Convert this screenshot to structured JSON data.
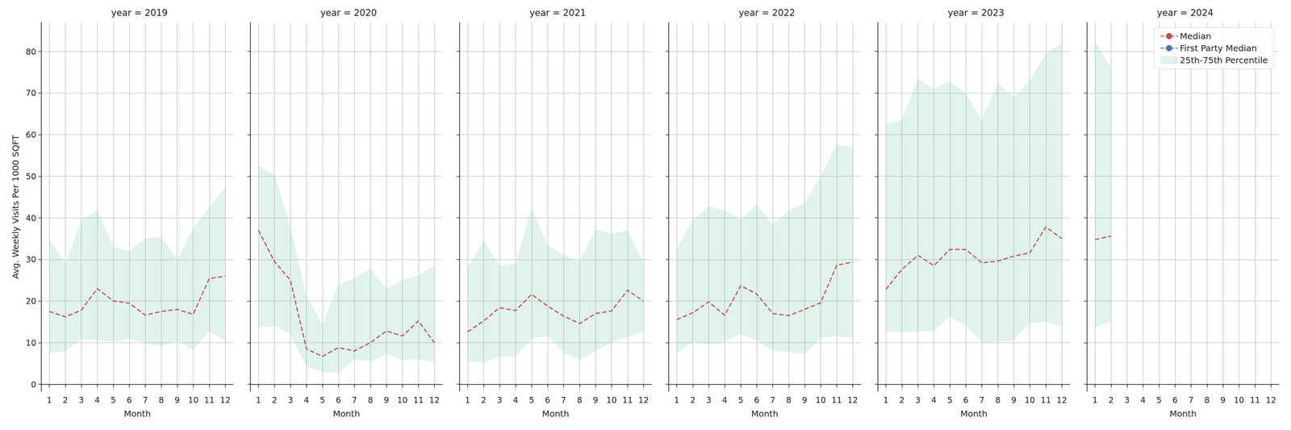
{
  "chart_data": [
    {
      "type": "line",
      "title": "year = 2019",
      "xlabel": "Month",
      "ylabel": "Avg. Weekly Visits Per 1000 SQFT",
      "x": [
        1,
        2,
        3,
        4,
        5,
        6,
        7,
        8,
        9,
        10,
        11,
        12
      ],
      "xlim": [
        0.5,
        12.5
      ],
      "xticks": [
        1,
        2,
        3,
        4,
        5,
        6,
        7,
        8,
        9,
        10,
        11,
        12
      ],
      "ylim": [
        -1.7,
        87
      ],
      "yticks": [
        0,
        10,
        20,
        30,
        40,
        50,
        60,
        70,
        80
      ],
      "grid": true,
      "series": [
        {
          "name": "Median",
          "color": "#c44e52",
          "line_style": "dashed",
          "values": [
            17.5,
            16.2,
            17.8,
            23,
            20,
            19.5,
            16.6,
            17.5,
            18,
            16.8,
            25.4,
            26
          ]
        },
        {
          "name": "First Party Median",
          "color": "#4c72b0",
          "line_style": "dashed",
          "values": [
            null,
            null,
            null,
            null,
            null,
            null,
            null,
            null,
            null,
            null,
            null,
            null
          ]
        },
        {
          "name": "25th-75th Percentile",
          "type": "band",
          "color": "#66c2a5",
          "lower": [
            7.5,
            8,
            10.8,
            10.6,
            10.2,
            11,
            9.8,
            9.2,
            10.4,
            8.3,
            12.8,
            10.4
          ],
          "upper": [
            35,
            29,
            39.5,
            41.8,
            33,
            32,
            35,
            35.5,
            30,
            37.5,
            42.5,
            47.5
          ]
        }
      ]
    },
    {
      "type": "line",
      "title": "year = 2020",
      "xlabel": "Month",
      "tick_labels": "x",
      "x": [
        1,
        2,
        3,
        4,
        5,
        6,
        7,
        8,
        9,
        10,
        11,
        12
      ],
      "xlim": [
        0.5,
        12.5
      ],
      "xticks": [
        1,
        2,
        3,
        4,
        5,
        6,
        7,
        8,
        9,
        10,
        11,
        12
      ],
      "ylim": [
        -1.7,
        87
      ],
      "yticks": [
        0,
        10,
        20,
        30,
        40,
        50,
        60,
        70,
        80
      ],
      "grid": true,
      "series": [
        {
          "name": "Median",
          "color": "#c44e52",
          "line_style": "dashed",
          "values": [
            37,
            29.5,
            25,
            8.5,
            6.7,
            8.8,
            8,
            10,
            12.8,
            11.6,
            15.2,
            10
          ]
        },
        {
          "name": "First Party Median",
          "color": "#4c72b0",
          "line_style": "dashed",
          "values": [
            null,
            null,
            null,
            null,
            null,
            null,
            null,
            null,
            null,
            null,
            null,
            null
          ]
        },
        {
          "name": "25th-75th Percentile",
          "type": "band",
          "color": "#66c2a5",
          "lower": [
            13.6,
            14,
            12,
            4.2,
            3,
            2.6,
            6,
            5.5,
            7.3,
            5.8,
            6,
            5.2
          ],
          "upper": [
            52.5,
            50.5,
            38,
            21,
            14.5,
            24,
            25.5,
            27.8,
            23,
            25,
            26.2,
            28.5
          ]
        }
      ]
    },
    {
      "type": "line",
      "title": "year = 2021",
      "xlabel": "Month",
      "tick_labels": "x",
      "x": [
        1,
        2,
        3,
        4,
        5,
        6,
        7,
        8,
        9,
        10,
        11,
        12
      ],
      "xlim": [
        0.5,
        12.5
      ],
      "xticks": [
        1,
        2,
        3,
        4,
        5,
        6,
        7,
        8,
        9,
        10,
        11,
        12
      ],
      "ylim": [
        -1.7,
        87
      ],
      "yticks": [
        0,
        10,
        20,
        30,
        40,
        50,
        60,
        70,
        80
      ],
      "grid": true,
      "series": [
        {
          "name": "Median",
          "color": "#c44e52",
          "line_style": "dashed",
          "values": [
            12.6,
            15.2,
            18.4,
            17.7,
            21.6,
            18.8,
            16.4,
            14.6,
            17,
            17.6,
            22.6,
            20
          ]
        },
        {
          "name": "First Party Median",
          "color": "#4c72b0",
          "line_style": "dashed",
          "values": [
            null,
            null,
            null,
            null,
            null,
            null,
            null,
            null,
            null,
            null,
            null,
            null
          ]
        },
        {
          "name": "25th-75th Percentile",
          "type": "band",
          "color": "#66c2a5",
          "lower": [
            5.5,
            5.2,
            6.7,
            6.6,
            11,
            11.6,
            7.6,
            5.8,
            8,
            10,
            11.5,
            12.7
          ],
          "upper": [
            28,
            34.5,
            28.5,
            29,
            42.3,
            33.5,
            31,
            29.5,
            37.2,
            36.2,
            37,
            29.5
          ]
        }
      ]
    },
    {
      "type": "line",
      "title": "year = 2022",
      "xlabel": "Month",
      "tick_labels": "x",
      "x": [
        1,
        2,
        3,
        4,
        5,
        6,
        7,
        8,
        9,
        10,
        11,
        12
      ],
      "xlim": [
        0.5,
        12.5
      ],
      "xticks": [
        1,
        2,
        3,
        4,
        5,
        6,
        7,
        8,
        9,
        10,
        11,
        12
      ],
      "ylim": [
        -1.7,
        87
      ],
      "yticks": [
        0,
        10,
        20,
        30,
        40,
        50,
        60,
        70,
        80
      ],
      "grid": true,
      "series": [
        {
          "name": "Median",
          "color": "#c44e52",
          "line_style": "dashed",
          "values": [
            15.5,
            17.2,
            19.8,
            16.6,
            23.7,
            21.7,
            17,
            16.5,
            18,
            19.6,
            28.6,
            29.4
          ]
        },
        {
          "name": "First Party Median",
          "color": "#4c72b0",
          "line_style": "dashed",
          "values": [
            null,
            null,
            null,
            null,
            null,
            null,
            null,
            null,
            null,
            null,
            null,
            null
          ]
        },
        {
          "name": "25th-75th Percentile",
          "type": "band",
          "color": "#66c2a5",
          "lower": [
            7.5,
            10.2,
            9.6,
            10.2,
            12,
            10.5,
            8,
            7.8,
            7.2,
            11.2,
            11.6,
            11.2
          ],
          "upper": [
            32.5,
            39.5,
            42.8,
            41.8,
            39.5,
            43.2,
            38.4,
            41.8,
            43.6,
            50,
            57.6,
            57
          ]
        }
      ]
    },
    {
      "type": "line",
      "title": "year = 2023",
      "xlabel": "Month",
      "tick_labels": "x",
      "x": [
        1,
        2,
        3,
        4,
        5,
        6,
        7,
        8,
        9,
        10,
        11,
        12
      ],
      "xlim": [
        0.5,
        12.5
      ],
      "xticks": [
        1,
        2,
        3,
        4,
        5,
        6,
        7,
        8,
        9,
        10,
        11,
        12
      ],
      "ylim": [
        -1.7,
        87
      ],
      "yticks": [
        0,
        10,
        20,
        30,
        40,
        50,
        60,
        70,
        80
      ],
      "grid": true,
      "series": [
        {
          "name": "Median",
          "color": "#c44e52",
          "line_style": "dashed",
          "values": [
            22.8,
            27.6,
            31,
            28.5,
            32.4,
            32.4,
            29.2,
            29.6,
            30.8,
            31.6,
            37.8,
            35
          ]
        },
        {
          "name": "First Party Median",
          "color": "#4c72b0",
          "line_style": "dashed",
          "values": [
            null,
            null,
            null,
            null,
            null,
            null,
            null,
            null,
            null,
            null,
            null,
            null
          ]
        },
        {
          "name": "25th-75th Percentile",
          "type": "band",
          "color": "#66c2a5",
          "lower": [
            12.6,
            12.6,
            12.7,
            12.7,
            16.3,
            14.2,
            10,
            10.2,
            10.6,
            14.6,
            15,
            14
          ],
          "upper": [
            62.5,
            63.6,
            73.5,
            71,
            72.8,
            69.8,
            63.6,
            72.4,
            69,
            73,
            79.5,
            82
          ]
        }
      ]
    },
    {
      "type": "line",
      "title": "year = 2024",
      "xlabel": "Month",
      "tick_labels": "x",
      "legend": "upper right",
      "x": [
        1,
        2
      ],
      "xlim": [
        0.5,
        12.5
      ],
      "xticks": [
        1,
        2,
        3,
        4,
        5,
        6,
        7,
        8,
        9,
        10,
        11,
        12
      ],
      "ylim": [
        -1.7,
        87
      ],
      "yticks": [
        0,
        10,
        20,
        30,
        40,
        50,
        60,
        70,
        80
      ],
      "grid": true,
      "series": [
        {
          "name": "Median",
          "color": "#c44e52",
          "line_style": "dashed",
          "values": [
            34.8,
            35.6
          ]
        },
        {
          "name": "First Party Median",
          "color": "#4c72b0",
          "line_style": "dashed",
          "values": [
            null,
            null
          ]
        },
        {
          "name": "25th-75th Percentile",
          "type": "band",
          "color": "#66c2a5",
          "lower": [
            13.6,
            15.2
          ],
          "upper": [
            82.5,
            76
          ]
        }
      ]
    }
  ]
}
